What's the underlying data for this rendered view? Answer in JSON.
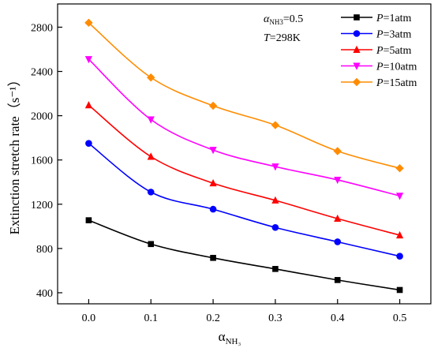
{
  "chart_data": {
    "type": "line",
    "xlabel": "α",
    "xlabel_sub": "NH₃",
    "ylabel": "Extinction stretch rate（s⁻¹）",
    "x": [
      0.0,
      0.1,
      0.2,
      0.3,
      0.4,
      0.5
    ],
    "x_ticks": [
      "0.0",
      "0.1",
      "0.2",
      "0.3",
      "0.4",
      "0.5"
    ],
    "y_ticks": [
      "400",
      "800",
      "1200",
      "1600",
      "2000",
      "2400",
      "2800"
    ],
    "xlim": [
      -0.05,
      0.55
    ],
    "ylim": [
      300,
      3010
    ],
    "grid": false,
    "legend_position": "top-right",
    "annotations": {
      "alpha_symbol": "α",
      "alpha_sub": "NH3",
      "alpha_value": "=0.5",
      "temp_symbol": "T",
      "temp_value": "=298K"
    },
    "series": [
      {
        "name": "P=1atm",
        "var": "P",
        "value_text": "=1atm",
        "color": "#000000",
        "marker": "square",
        "values": [
          1055,
          840,
          715,
          615,
          515,
          425
        ]
      },
      {
        "name": "P=3atm",
        "var": "P",
        "value_text": "=3atm",
        "color": "#0000ff",
        "marker": "circle",
        "values": [
          1750,
          1310,
          1155,
          990,
          860,
          730
        ]
      },
      {
        "name": "P=5atm",
        "var": "P",
        "value_text": "=5atm",
        "color": "#ff0000",
        "marker": "triangle-up",
        "values": [
          2095,
          1630,
          1390,
          1235,
          1070,
          920
        ]
      },
      {
        "name": "P=10atm",
        "var": "P",
        "value_text": "=10atm",
        "color": "#ff00ff",
        "marker": "triangle-down",
        "values": [
          2510,
          1965,
          1690,
          1540,
          1420,
          1275
        ]
      },
      {
        "name": "P=15atm",
        "var": "P",
        "value_text": "=15atm",
        "color": "#ff8c00",
        "marker": "diamond",
        "values": [
          2840,
          2345,
          2090,
          1915,
          1680,
          1525
        ]
      }
    ]
  }
}
